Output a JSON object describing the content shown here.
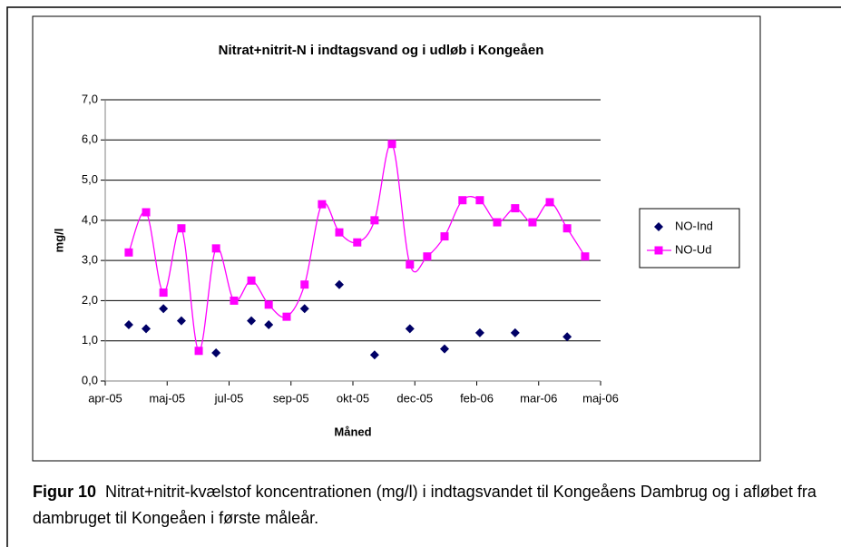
{
  "chart_data": {
    "type": "line",
    "title": "Nitrat+nitrit-N i indtagsvand og i udløb i Kongeåen",
    "x_label": "Måned",
    "y_label": "mg/l",
    "xlim": [
      0,
      8
    ],
    "xticks": [
      {
        "value": 0,
        "label": "apr-05"
      },
      {
        "value": 1,
        "label": "maj-05"
      },
      {
        "value": 2,
        "label": "jul-05"
      },
      {
        "value": 3,
        "label": "sep-05"
      },
      {
        "value": 4,
        "label": "okt-05"
      },
      {
        "value": 5,
        "label": "dec-05"
      },
      {
        "value": 6,
        "label": "feb-06"
      },
      {
        "value": 7,
        "label": "mar-06"
      },
      {
        "value": 8,
        "label": "maj-06"
      }
    ],
    "ylim": [
      0,
      7
    ],
    "yticks": [
      {
        "value": 0,
        "label": "0,0"
      },
      {
        "value": 1,
        "label": "1,0"
      },
      {
        "value": 2,
        "label": "2,0"
      },
      {
        "value": 3,
        "label": "3,0"
      },
      {
        "value": 4,
        "label": "4,0"
      },
      {
        "value": 5,
        "label": "5,0"
      },
      {
        "value": 6,
        "label": "6,0"
      },
      {
        "value": 7,
        "label": "7,0"
      }
    ],
    "grid": true,
    "legend": "right",
    "series": [
      {
        "name": "NO-Ind",
        "color": "#000066",
        "marker": "diamond",
        "line": false,
        "x": [
          0.38,
          0.66,
          0.94,
          1.23,
          1.79,
          2.36,
          2.64,
          3.22,
          3.78,
          4.35,
          4.92,
          5.48,
          6.05,
          6.62,
          7.46
        ],
        "values": [
          1.4,
          1.3,
          1.8,
          1.5,
          0.7,
          1.5,
          1.4,
          1.8,
          2.4,
          0.65,
          1.3,
          0.8,
          1.2,
          1.2,
          1.1
        ]
      },
      {
        "name": "NO-Ud",
        "color": "#ff00ff",
        "marker": "square",
        "line": true,
        "x": [
          0.38,
          0.66,
          0.94,
          1.23,
          1.51,
          1.79,
          2.08,
          2.36,
          2.64,
          2.93,
          3.22,
          3.5,
          3.78,
          4.07,
          4.35,
          4.63,
          4.92,
          5.2,
          5.48,
          5.77,
          6.05,
          6.33,
          6.62,
          6.9,
          7.18,
          7.46,
          7.75
        ],
        "values": [
          3.2,
          4.2,
          2.2,
          3.8,
          0.75,
          3.3,
          2.0,
          2.5,
          1.9,
          1.6,
          2.4,
          4.4,
          3.7,
          3.45,
          4.0,
          5.9,
          2.9,
          3.1,
          3.6,
          4.5,
          4.5,
          3.95,
          4.3,
          3.95,
          4.45,
          3.8,
          3.1
        ]
      }
    ]
  },
  "caption": {
    "label": "Figur 10",
    "text": "Nitrat+nitrit-kvælstof koncentrationen (mg/l) i indtagsvandet til Kongeåens Dambrug og i afløbet fra dambruget til Kongeåen i første måleår."
  }
}
